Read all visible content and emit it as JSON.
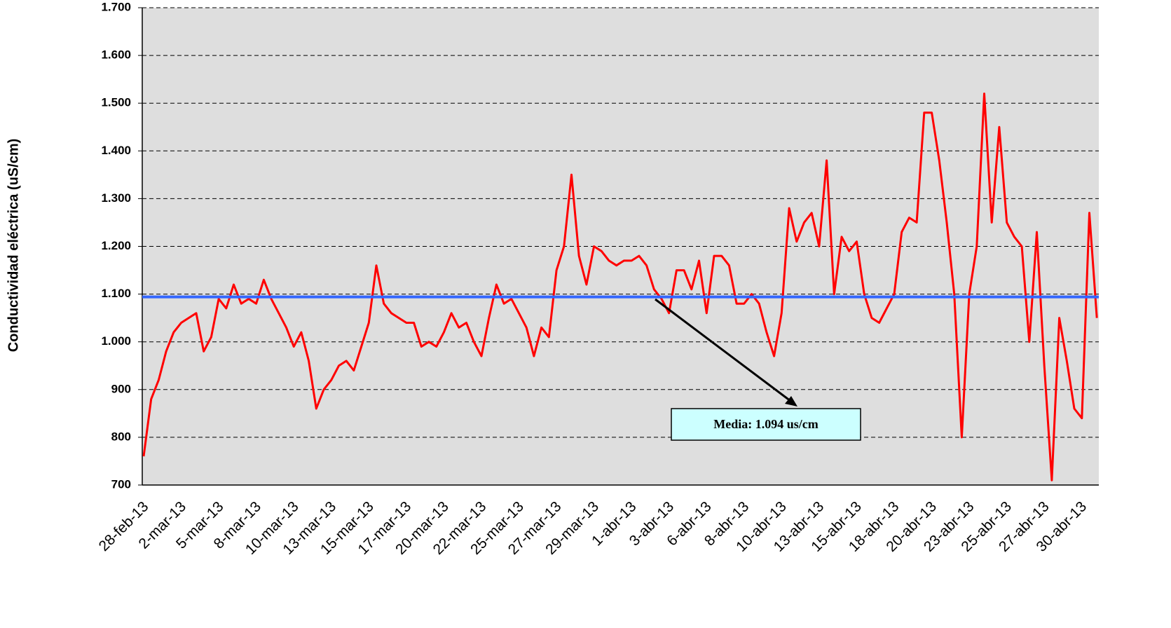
{
  "chart_data": {
    "type": "line",
    "ylabel": "Conductividad eléctrica (uS/cm)",
    "ylim": [
      700,
      1700
    ],
    "yticks": [
      700,
      800,
      900,
      {
        "value": 1000,
        "label": "1.000"
      },
      {
        "value": 1100,
        "label": "1.100"
      },
      {
        "value": 1200,
        "label": "1.200"
      },
      {
        "value": 1300,
        "label": "1.300"
      },
      {
        "value": 1400,
        "label": "1.400"
      },
      {
        "value": 1500,
        "label": "1.500"
      },
      {
        "value": 1600,
        "label": "1.600"
      },
      {
        "value": 1700,
        "label": "1.700"
      }
    ],
    "grid": true,
    "categories": [
      "28-feb-13",
      null,
      null,
      null,
      null,
      "2-mar-13",
      null,
      null,
      null,
      null,
      "5-mar-13",
      null,
      null,
      null,
      null,
      "8-mar-13",
      null,
      null,
      null,
      null,
      "10-mar-13",
      null,
      null,
      null,
      null,
      "13-mar-13",
      null,
      null,
      null,
      null,
      "15-mar-13",
      null,
      null,
      null,
      null,
      "17-mar-13",
      null,
      null,
      null,
      null,
      "20-mar-13",
      null,
      null,
      null,
      null,
      "22-mar-13",
      null,
      null,
      null,
      null,
      "25-mar-13",
      null,
      null,
      null,
      null,
      "27-mar-13",
      null,
      null,
      null,
      null,
      "29-mar-13",
      null,
      null,
      null,
      null,
      "1-abr-13",
      null,
      null,
      null,
      null,
      "3-abr-13",
      null,
      null,
      null,
      null,
      "6-abr-13",
      null,
      null,
      null,
      null,
      "8-abr-13",
      null,
      null,
      null,
      null,
      "10-abr-13",
      null,
      null,
      null,
      null,
      "13-abr-13",
      null,
      null,
      null,
      null,
      "15-abr-13",
      null,
      null,
      null,
      null,
      "18-abr-13",
      null,
      null,
      null,
      null,
      "20-abr-13",
      null,
      null,
      null,
      null,
      "23-abr-13",
      null,
      null,
      null,
      null,
      "25-abr-13",
      null,
      null,
      null,
      null,
      "27-abr-13",
      null,
      null,
      null,
      null,
      "30-abr-13",
      null,
      null
    ],
    "series": [
      {
        "color": "#ff0000",
        "values": [
          760,
          880,
          920,
          980,
          1020,
          1040,
          1050,
          1060,
          980,
          1010,
          1090,
          1070,
          1120,
          1080,
          1090,
          1080,
          1130,
          1090,
          1060,
          1030,
          990,
          1020,
          960,
          860,
          900,
          920,
          950,
          960,
          940,
          990,
          1040,
          1160,
          1080,
          1060,
          1050,
          1040,
          1040,
          990,
          1000,
          990,
          1020,
          1060,
          1030,
          1040,
          1000,
          970,
          1050,
          1120,
          1080,
          1090,
          1060,
          1030,
          970,
          1030,
          1010,
          1150,
          1200,
          1350,
          1180,
          1120,
          1200,
          1190,
          1170,
          1160,
          1170,
          1170,
          1180,
          1160,
          1110,
          1090,
          1060,
          1150,
          1150,
          1110,
          1170,
          1060,
          1180,
          1180,
          1160,
          1080,
          1080,
          1100,
          1080,
          1020,
          970,
          1060,
          1280,
          1210,
          1250,
          1270,
          1200,
          1380,
          1100,
          1220,
          1190,
          1210,
          1100,
          1050,
          1040,
          1070,
          1100,
          1230,
          1260,
          1250,
          1480,
          1480,
          1380,
          1250,
          1100,
          800,
          1100,
          1200,
          1520,
          1250,
          1450,
          1250,
          1220,
          1200,
          1000,
          1230,
          950,
          710,
          1050,
          960,
          860,
          840,
          1270,
          1050
        ]
      }
    ],
    "mean": {
      "value": 1094,
      "label": "Media: 1.094 us/cm",
      "color": "#3366ff"
    }
  }
}
